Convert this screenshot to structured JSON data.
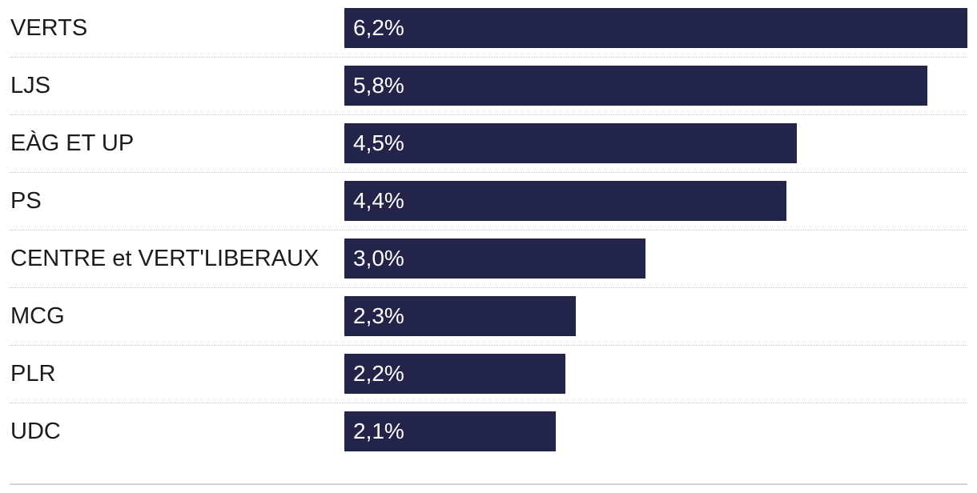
{
  "chart_data": {
    "type": "bar",
    "orientation": "horizontal",
    "categories": [
      "VERTS",
      "LJS",
      "EÀG ET UP",
      "PS",
      "CENTRE et VERT'LIBERAUX",
      "MCG",
      "PLR",
      "UDC"
    ],
    "values": [
      6.2,
      5.8,
      4.5,
      4.4,
      3.0,
      2.3,
      2.2,
      2.1
    ],
    "value_labels": [
      "6,2%",
      "5,8%",
      "4,5%",
      "4,4%",
      "3,0%",
      "2,3%",
      "2,2%",
      "2,1%"
    ],
    "unit": "%",
    "xlim": [
      0,
      6.2
    ],
    "grid": false,
    "bar_color": "#22244a",
    "label_color": "#ffffff"
  }
}
